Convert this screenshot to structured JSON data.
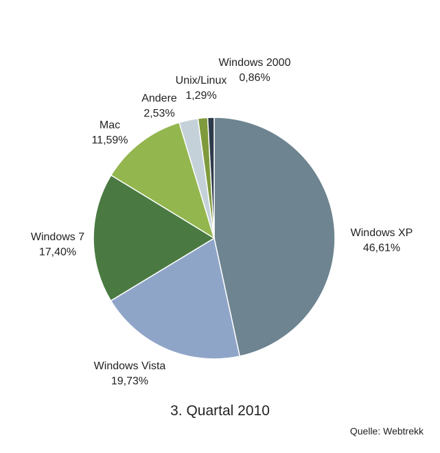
{
  "chart_data": {
    "type": "pie",
    "slices": [
      {
        "label": "Windows XP",
        "value_text": "46,61%",
        "value": 46.61,
        "color": "#6e8490"
      },
      {
        "label": "Windows Vista",
        "value_text": "19,73%",
        "value": 19.73,
        "color": "#8fa5c8"
      },
      {
        "label": "Windows 7",
        "value_text": "17,40%",
        "value": 17.4,
        "color": "#4a7a42"
      },
      {
        "label": "Mac",
        "value_text": "11,59%",
        "value": 11.59,
        "color": "#93b64e"
      },
      {
        "label": "Andere",
        "value_text": "2,53%",
        "value": 2.53,
        "color": "#c5d1d8"
      },
      {
        "label": "Unix/Linux",
        "value_text": "1,29%",
        "value": 1.29,
        "color": "#7f9a3c"
      },
      {
        "label": "Windows 2000",
        "value_text": "0,86%",
        "value": 0.86,
        "color": "#2d3a4a"
      }
    ],
    "subtitle": "3. Quartal 2010",
    "source": "Quelle: Webtrekk"
  }
}
